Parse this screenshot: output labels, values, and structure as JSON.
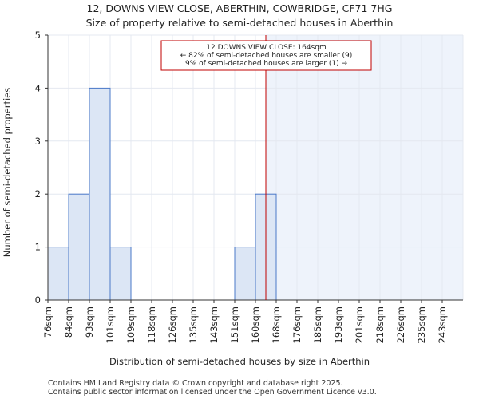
{
  "chart_data": {
    "type": "bar",
    "title": "12, DOWNS VIEW CLOSE, ABERTHIN, COWBRIDGE, CF71 7HG",
    "subtitle": "Size of property relative to semi-detached houses in Aberthin",
    "xlabel": "Distribution of semi-detached houses by size in Aberthin",
    "ylabel": "Number of semi-detached properties",
    "categories": [
      "76sqm",
      "84sqm",
      "93sqm",
      "101sqm",
      "109sqm",
      "118sqm",
      "126sqm",
      "135sqm",
      "143sqm",
      "151sqm",
      "160sqm",
      "168sqm",
      "176sqm",
      "185sqm",
      "193sqm",
      "201sqm",
      "218sqm",
      "226sqm",
      "235sqm",
      "243sqm"
    ],
    "values": [
      1,
      2,
      4,
      1,
      0,
      0,
      0,
      0,
      0,
      1,
      2,
      0,
      0,
      0,
      0,
      0,
      0,
      0,
      0,
      0
    ],
    "ylim": [
      0,
      5
    ],
    "yticks": [
      0,
      1,
      2,
      3,
      4,
      5
    ],
    "marker": {
      "value": 164,
      "label_lines": [
        "12 DOWNS VIEW CLOSE: 164sqm",
        "← 82% of semi-detached houses are smaller (9)",
        "9% of semi-detached houses are larger (1) →"
      ]
    },
    "colors": {
      "bar_fill": "#dce6f5",
      "bar_stroke": "#4a78c8",
      "highlight_fill": "#eef3fb",
      "marker_line": "#c00000",
      "annot_border": "#c00000",
      "grid": "#e4e8f0"
    },
    "grid": true
  },
  "footer": {
    "line1": "Contains HM Land Registry data © Crown copyright and database right 2025.",
    "line2": "Contains public sector information licensed under the Open Government Licence v3.0."
  }
}
